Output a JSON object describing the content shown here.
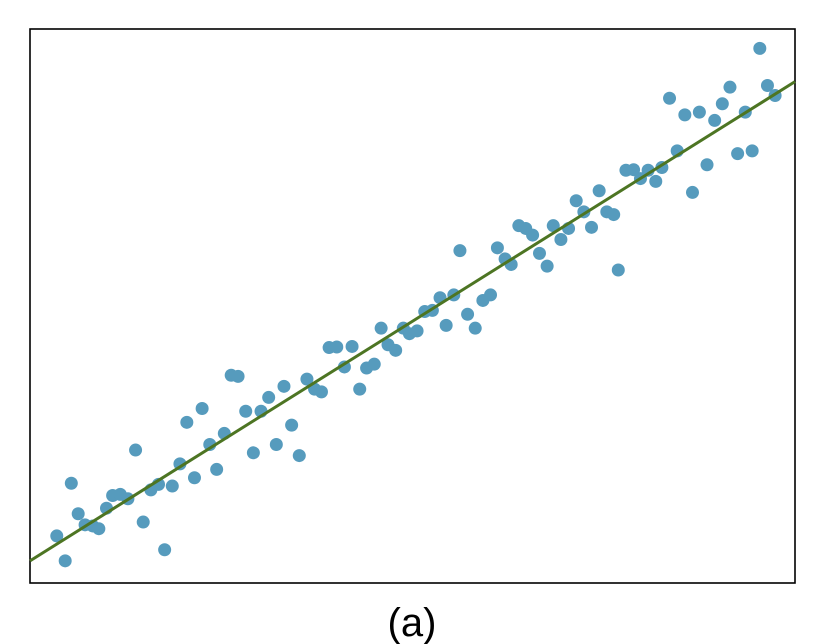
{
  "chart_data": {
    "type": "scatter",
    "caption": "(a)",
    "title": "",
    "xlabel": "",
    "ylabel": "",
    "xlim": [
      0,
      100
    ],
    "ylim": [
      0,
      100
    ],
    "grid": false,
    "legend": "none",
    "colors": {
      "points": "#569bbd",
      "fit_line": "#4d7523",
      "frame": "#000000"
    },
    "points": [
      {
        "x": 3.5,
        "y": 8.5
      },
      {
        "x": 4.6,
        "y": 4.0
      },
      {
        "x": 5.4,
        "y": 18.0
      },
      {
        "x": 6.3,
        "y": 12.5
      },
      {
        "x": 7.2,
        "y": 10.5
      },
      {
        "x": 8.2,
        "y": 10.3
      },
      {
        "x": 9.0,
        "y": 9.8
      },
      {
        "x": 10.0,
        "y": 13.5
      },
      {
        "x": 10.8,
        "y": 15.8
      },
      {
        "x": 11.8,
        "y": 16.0
      },
      {
        "x": 12.8,
        "y": 15.2
      },
      {
        "x": 13.8,
        "y": 24.0
      },
      {
        "x": 14.8,
        "y": 11.0
      },
      {
        "x": 15.8,
        "y": 16.8
      },
      {
        "x": 16.8,
        "y": 17.8
      },
      {
        "x": 17.6,
        "y": 6.0
      },
      {
        "x": 18.6,
        "y": 17.5
      },
      {
        "x": 19.6,
        "y": 21.5
      },
      {
        "x": 20.5,
        "y": 29.0
      },
      {
        "x": 21.5,
        "y": 19.0
      },
      {
        "x": 22.5,
        "y": 31.5
      },
      {
        "x": 23.5,
        "y": 25.0
      },
      {
        "x": 24.4,
        "y": 20.5
      },
      {
        "x": 25.4,
        "y": 27.0
      },
      {
        "x": 26.3,
        "y": 37.5
      },
      {
        "x": 27.2,
        "y": 37.3
      },
      {
        "x": 28.2,
        "y": 31.0
      },
      {
        "x": 29.2,
        "y": 23.5
      },
      {
        "x": 30.2,
        "y": 31.0
      },
      {
        "x": 31.2,
        "y": 33.5
      },
      {
        "x": 32.2,
        "y": 25.0
      },
      {
        "x": 33.2,
        "y": 35.5
      },
      {
        "x": 34.2,
        "y": 28.5
      },
      {
        "x": 35.2,
        "y": 23.0
      },
      {
        "x": 36.2,
        "y": 36.8
      },
      {
        "x": 37.2,
        "y": 35.0
      },
      {
        "x": 38.1,
        "y": 34.5
      },
      {
        "x": 39.1,
        "y": 42.5
      },
      {
        "x": 40.1,
        "y": 42.6
      },
      {
        "x": 41.1,
        "y": 39.0
      },
      {
        "x": 42.1,
        "y": 42.7
      },
      {
        "x": 43.1,
        "y": 35.0
      },
      {
        "x": 44.0,
        "y": 38.8
      },
      {
        "x": 45.0,
        "y": 39.5
      },
      {
        "x": 45.9,
        "y": 46.0
      },
      {
        "x": 46.8,
        "y": 43.0
      },
      {
        "x": 47.8,
        "y": 42.0
      },
      {
        "x": 48.8,
        "y": 46.0
      },
      {
        "x": 49.6,
        "y": 45.0
      },
      {
        "x": 50.6,
        "y": 45.5
      },
      {
        "x": 51.6,
        "y": 49.0
      },
      {
        "x": 52.6,
        "y": 49.2
      },
      {
        "x": 53.6,
        "y": 51.5
      },
      {
        "x": 54.4,
        "y": 46.5
      },
      {
        "x": 55.4,
        "y": 52.0
      },
      {
        "x": 56.2,
        "y": 60.0
      },
      {
        "x": 57.2,
        "y": 48.5
      },
      {
        "x": 58.2,
        "y": 46.0
      },
      {
        "x": 59.2,
        "y": 51.0
      },
      {
        "x": 60.2,
        "y": 52.0
      },
      {
        "x": 61.1,
        "y": 60.5
      },
      {
        "x": 62.1,
        "y": 58.5
      },
      {
        "x": 62.9,
        "y": 57.5
      },
      {
        "x": 63.9,
        "y": 64.5
      },
      {
        "x": 64.8,
        "y": 64.0
      },
      {
        "x": 65.7,
        "y": 62.8
      },
      {
        "x": 66.6,
        "y": 59.5
      },
      {
        "x": 67.6,
        "y": 57.2
      },
      {
        "x": 68.4,
        "y": 64.5
      },
      {
        "x": 69.4,
        "y": 62.0
      },
      {
        "x": 70.4,
        "y": 64.0
      },
      {
        "x": 71.4,
        "y": 69.0
      },
      {
        "x": 72.4,
        "y": 67.0
      },
      {
        "x": 73.4,
        "y": 64.2
      },
      {
        "x": 74.4,
        "y": 70.8
      },
      {
        "x": 75.4,
        "y": 67.0
      },
      {
        "x": 76.3,
        "y": 66.5
      },
      {
        "x": 76.9,
        "y": 56.5
      },
      {
        "x": 77.9,
        "y": 74.5
      },
      {
        "x": 78.9,
        "y": 74.6
      },
      {
        "x": 79.8,
        "y": 73.0
      },
      {
        "x": 80.8,
        "y": 74.5
      },
      {
        "x": 81.8,
        "y": 72.5
      },
      {
        "x": 82.6,
        "y": 75.0
      },
      {
        "x": 83.6,
        "y": 87.5
      },
      {
        "x": 84.6,
        "y": 78.0
      },
      {
        "x": 85.6,
        "y": 84.5
      },
      {
        "x": 86.6,
        "y": 70.5
      },
      {
        "x": 87.5,
        "y": 85.0
      },
      {
        "x": 88.5,
        "y": 75.5
      },
      {
        "x": 89.5,
        "y": 83.5
      },
      {
        "x": 90.5,
        "y": 86.5
      },
      {
        "x": 91.5,
        "y": 89.5
      },
      {
        "x": 92.5,
        "y": 77.5
      },
      {
        "x": 93.5,
        "y": 85.0
      },
      {
        "x": 94.4,
        "y": 78.0
      },
      {
        "x": 95.4,
        "y": 96.5
      },
      {
        "x": 96.4,
        "y": 89.8
      },
      {
        "x": 97.4,
        "y": 88.0
      }
    ],
    "fit_line": {
      "x": [
        0,
        100
      ],
      "y": [
        4.0,
        90.5
      ]
    }
  }
}
